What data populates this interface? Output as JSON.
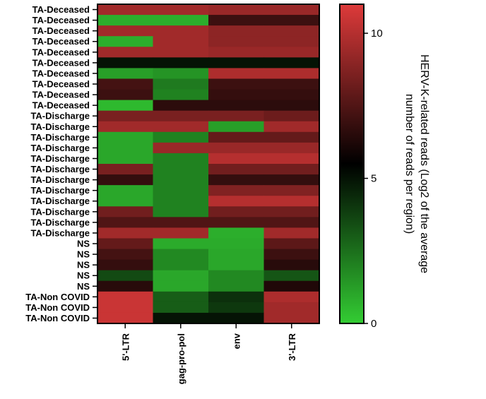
{
  "chart_data": {
    "type": "heatmap",
    "rows": [
      "TA-Deceased",
      "TA-Deceased",
      "TA-Deceased",
      "TA-Deceased",
      "TA-Deceased",
      "TA-Deceased",
      "TA-Deceased",
      "TA-Deceased",
      "TA-Deceased",
      "TA-Deceased",
      "TA-Discharge",
      "TA-Discharge",
      "TA-Discharge",
      "TA-Discharge",
      "TA-Discharge",
      "TA-Discharge",
      "TA-Discharge",
      "TA-Discharge",
      "TA-Discharge",
      "TA-Discharge",
      "TA-Discharge",
      "TA-Discharge",
      "NS",
      "NS",
      "NS",
      "NS",
      "NS",
      "TA-Non COVID",
      "TA-Non COVID",
      "TA-Non COVID"
    ],
    "columns": [
      "5'-LTR",
      "gag-pro-pol",
      "env",
      "3'-LTR"
    ],
    "values": [
      [
        9.5,
        9.5,
        9.3,
        9.3
      ],
      [
        0.8,
        0.8,
        7.0,
        7.0
      ],
      [
        9.5,
        9.5,
        9.0,
        9.0
      ],
      [
        0.8,
        9.5,
        9.0,
        9.0
      ],
      [
        9.5,
        9.5,
        9.3,
        9.3
      ],
      [
        5.0,
        5.0,
        5.0,
        5.0
      ],
      [
        1.2,
        1.5,
        9.8,
        9.8
      ],
      [
        7.2,
        2.2,
        7.0,
        7.0
      ],
      [
        7.0,
        2.0,
        6.8,
        6.8
      ],
      [
        0.5,
        6.6,
        6.6,
        6.6
      ],
      [
        8.5,
        8.5,
        8.5,
        8.2
      ],
      [
        9.5,
        9.5,
        1.2,
        9.5
      ],
      [
        1.0,
        2.0,
        8.0,
        8.0
      ],
      [
        1.0,
        9.3,
        9.3,
        9.3
      ],
      [
        1.0,
        2.0,
        10.0,
        10.0
      ],
      [
        8.5,
        2.0,
        8.3,
        8.3
      ],
      [
        6.8,
        2.0,
        6.8,
        6.8
      ],
      [
        1.0,
        2.0,
        8.7,
        8.7
      ],
      [
        1.0,
        2.0,
        10.0,
        10.0
      ],
      [
        8.3,
        2.0,
        8.3,
        8.3
      ],
      [
        7.5,
        7.5,
        7.5,
        7.5
      ],
      [
        9.5,
        9.5,
        0.8,
        9.5
      ],
      [
        8.0,
        0.9,
        0.9,
        7.8
      ],
      [
        7.2,
        1.8,
        1.0,
        7.0
      ],
      [
        6.8,
        1.8,
        1.0,
        6.5
      ],
      [
        3.5,
        1.0,
        1.8,
        3.2
      ],
      [
        6.5,
        1.0,
        1.8,
        6.3
      ],
      [
        10.5,
        3.0,
        4.2,
        9.8
      ],
      [
        10.5,
        3.0,
        4.0,
        9.5
      ],
      [
        10.5,
        5.0,
        5.0,
        9.5
      ]
    ],
    "colorbar": {
      "title_line1": "HERV-K-related reads (Log2 of the average",
      "title_line2": "number of reads per region)",
      "min": 0,
      "max": 11,
      "ticks": [
        0,
        5,
        10
      ],
      "colors": {
        "low": "#33cc33",
        "mid": "#000000",
        "high": "#dd3a3a"
      }
    },
    "xlabel": "",
    "ylabel": ""
  }
}
